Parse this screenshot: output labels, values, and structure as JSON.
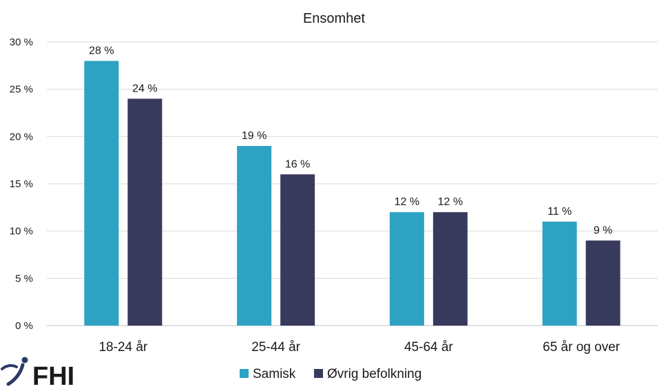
{
  "chart_data": {
    "type": "bar",
    "title": "Ensomhet",
    "categories": [
      "18-24 år",
      "25-44 år",
      "45-64 år",
      "65 år og over"
    ],
    "series": [
      {
        "name": "Samisk",
        "color": "#2ea2c3",
        "values": [
          28,
          19,
          12,
          11
        ],
        "labels": [
          "28 %",
          "19 %",
          "12 %",
          "11 %"
        ]
      },
      {
        "name": "Øvrig befolkning",
        "color": "#383a5d",
        "values": [
          24,
          16,
          12,
          9
        ],
        "labels": [
          "24 %",
          "16 %",
          "12 %",
          "9 %"
        ]
      }
    ],
    "ylim": [
      0,
      30
    ],
    "yticks": [
      0,
      5,
      10,
      15,
      20,
      25,
      30
    ],
    "ytick_labels": [
      "0 %",
      "5 %",
      "10 %",
      "15 %",
      "20 %",
      "25 %",
      "30 %"
    ],
    "xlabel": "",
    "ylabel": "",
    "grid": true,
    "legend_position": "bottom"
  },
  "logo": {
    "text": "FHI",
    "color": "#2b3a67"
  }
}
